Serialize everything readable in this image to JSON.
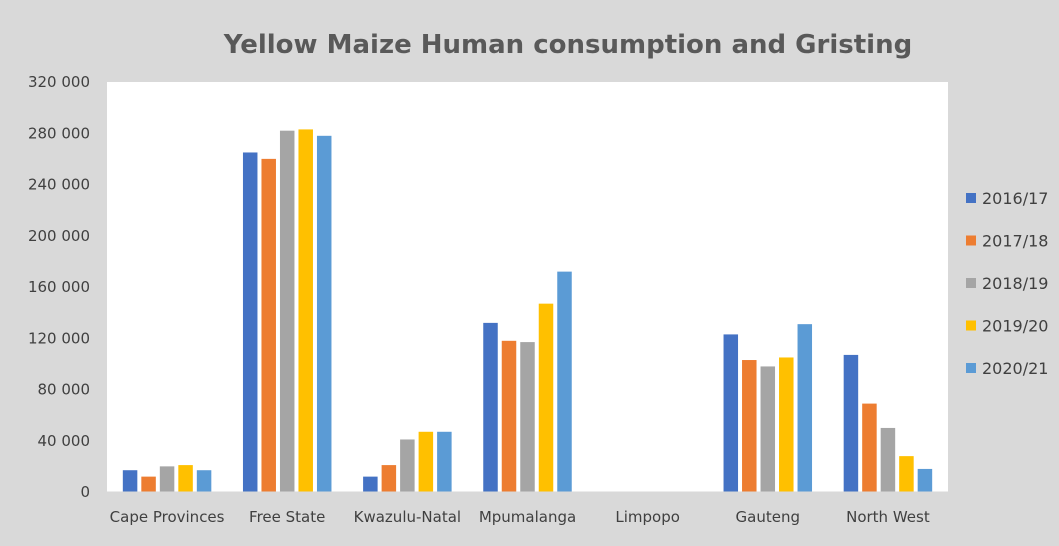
{
  "chart_data": {
    "type": "bar",
    "title": "Yellow Maize Human consumption and Gristing",
    "xlabel": "",
    "ylabel": "",
    "ylim": [
      0,
      320000
    ],
    "yticks": [
      0,
      40000,
      80000,
      120000,
      160000,
      200000,
      240000,
      280000,
      320000
    ],
    "ytick_labels": [
      "0",
      "40 000",
      "80 000",
      "120 000",
      "160 000",
      "200 000",
      "240 000",
      "280 000",
      "320 000"
    ],
    "grid": false,
    "legend_position": "right",
    "categories": [
      "Cape Provinces",
      "Free State",
      "Kwazulu-Natal",
      "Mpumalanga",
      "Limpopo",
      "Gauteng",
      "North West"
    ],
    "series": [
      {
        "name": "2016/17",
        "color": "#4472c4",
        "values": [
          17000,
          265000,
          12000,
          132000,
          0,
          123000,
          107000
        ]
      },
      {
        "name": "2017/18",
        "color": "#ed7d31",
        "values": [
          12000,
          260000,
          21000,
          118000,
          0,
          103000,
          69000
        ]
      },
      {
        "name": "2018/19",
        "color": "#a5a5a5",
        "values": [
          20000,
          282000,
          41000,
          117000,
          0,
          98000,
          50000
        ]
      },
      {
        "name": "2019/20",
        "color": "#ffc000",
        "values": [
          21000,
          283000,
          47000,
          147000,
          0,
          105000,
          28000
        ]
      },
      {
        "name": "2020/21",
        "color": "#5b9bd5",
        "values": [
          17000,
          278000,
          47000,
          172000,
          0,
          131000,
          18000
        ]
      }
    ]
  }
}
